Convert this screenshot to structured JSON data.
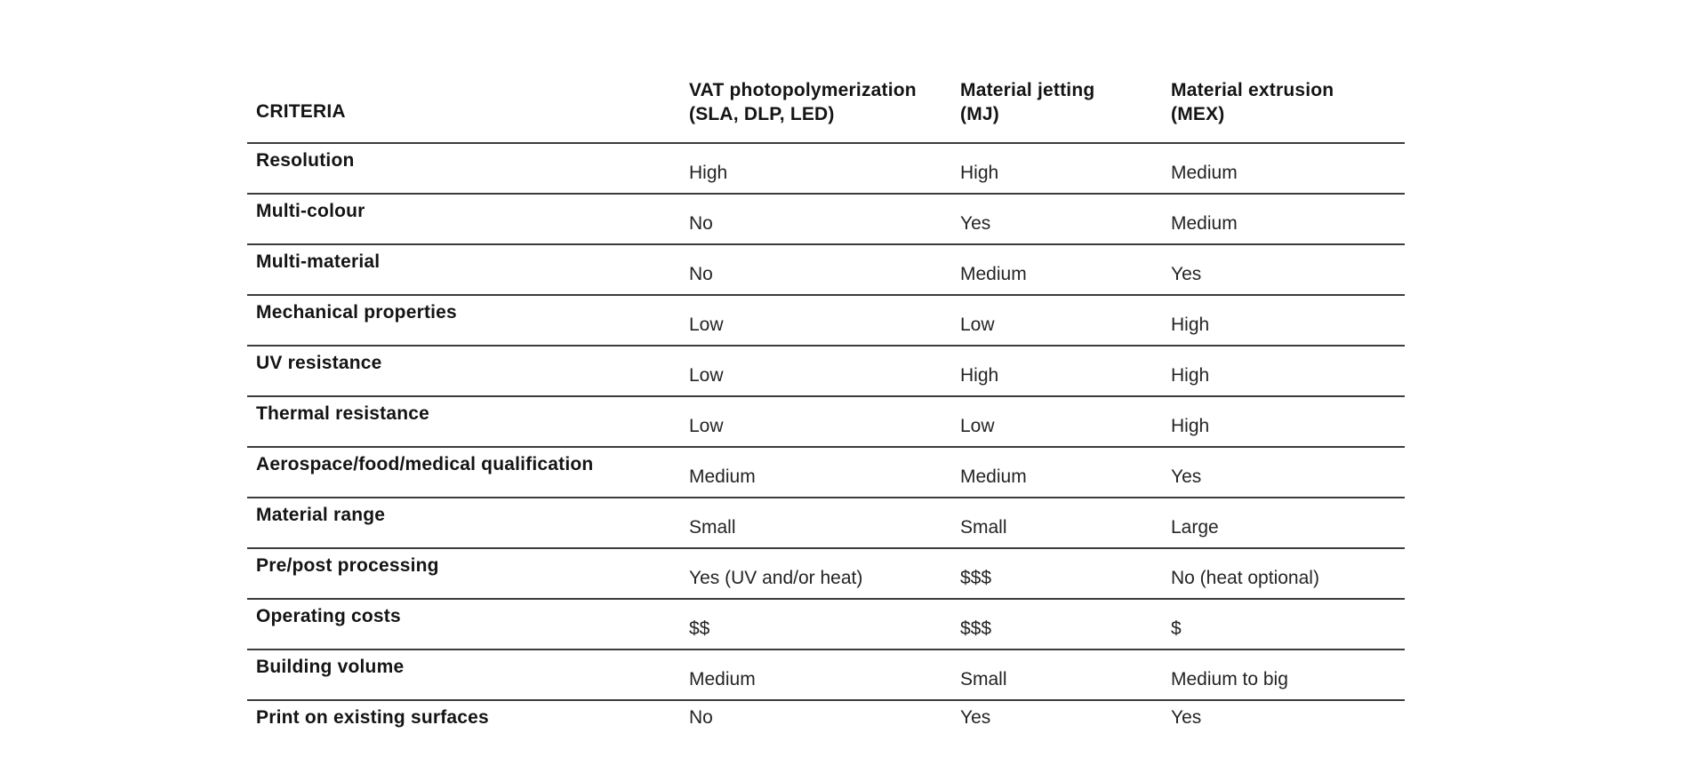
{
  "table": {
    "criteria_header": "CRITERIA",
    "column_headers": [
      {
        "line1": "VAT photopolymerization",
        "line2": "(SLA, DLP, LED)"
      },
      {
        "line1": "Material jetting",
        "line2": "(MJ)"
      },
      {
        "line1": "Material extrusion",
        "line2": "(MEX)"
      }
    ],
    "rows": [
      {
        "criteria": "Resolution",
        "values": [
          "High",
          "High",
          "Medium"
        ]
      },
      {
        "criteria": "Multi-colour",
        "values": [
          "No",
          "Yes",
          "Medium"
        ]
      },
      {
        "criteria": "Multi-material",
        "values": [
          "No",
          "Medium",
          "Yes"
        ]
      },
      {
        "criteria": "Mechanical properties",
        "values": [
          "Low",
          "Low",
          "High"
        ]
      },
      {
        "criteria": "UV resistance",
        "values": [
          "Low",
          "High",
          "High"
        ]
      },
      {
        "criteria": "Thermal resistance",
        "values": [
          "Low",
          "Low",
          "High"
        ]
      },
      {
        "criteria": "Aerospace/food/medical qualification",
        "values": [
          "Medium",
          "Medium",
          "Yes"
        ]
      },
      {
        "criteria": "Material range",
        "values": [
          "Small",
          "Small",
          "Large"
        ]
      },
      {
        "criteria": "Pre/post processing",
        "values": [
          "Yes (UV and/or heat)",
          "$$$",
          "No (heat optional)"
        ]
      },
      {
        "criteria": "Operating costs",
        "values": [
          "$$",
          "$$$",
          "$"
        ]
      },
      {
        "criteria": "Building volume",
        "values": [
          "Medium",
          "Small",
          "Medium to big"
        ]
      },
      {
        "criteria": "Print on existing surfaces",
        "values": [
          "No",
          "Yes",
          "Yes"
        ]
      }
    ]
  },
  "colors": {
    "background": "#ffffff",
    "label_text": "#141414",
    "value_text": "#242424",
    "divider": "#3b3b3b"
  }
}
